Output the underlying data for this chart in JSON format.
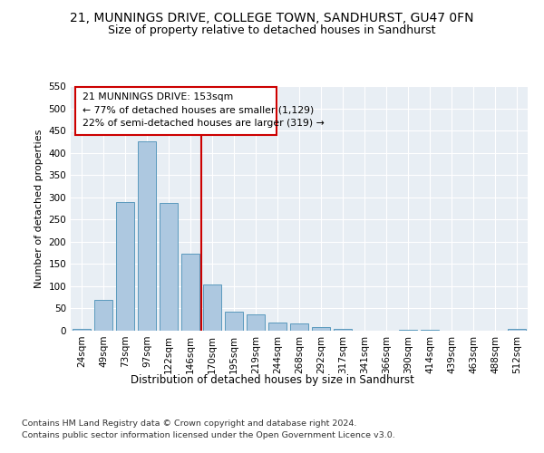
{
  "title1": "21, MUNNINGS DRIVE, COLLEGE TOWN, SANDHURST, GU47 0FN",
  "title2": "Size of property relative to detached houses in Sandhurst",
  "xlabel": "Distribution of detached houses by size in Sandhurst",
  "ylabel": "Number of detached properties",
  "categories": [
    "24sqm",
    "49sqm",
    "73sqm",
    "97sqm",
    "122sqm",
    "146sqm",
    "170sqm",
    "195sqm",
    "219sqm",
    "244sqm",
    "268sqm",
    "292sqm",
    "317sqm",
    "341sqm",
    "366sqm",
    "390sqm",
    "414sqm",
    "439sqm",
    "463sqm",
    "488sqm",
    "512sqm"
  ],
  "values": [
    5,
    70,
    290,
    425,
    287,
    173,
    103,
    43,
    37,
    18,
    16,
    8,
    4,
    0,
    0,
    3,
    2,
    0,
    0,
    0,
    4
  ],
  "bar_color": "#adc8e0",
  "bar_edge_color": "#5a9abd",
  "vline_x": 5.5,
  "vline_color": "#cc0000",
  "annotation_line1": "21 MUNNINGS DRIVE: 153sqm",
  "annotation_line2": "← 77% of detached houses are smaller (1,129)",
  "annotation_line3": "22% of semi-detached houses are larger (319) →",
  "annotation_box_color": "#cc0000",
  "ylim": [
    0,
    550
  ],
  "yticks": [
    0,
    50,
    100,
    150,
    200,
    250,
    300,
    350,
    400,
    450,
    500,
    550
  ],
  "footer1": "Contains HM Land Registry data © Crown copyright and database right 2024.",
  "footer2": "Contains public sector information licensed under the Open Government Licence v3.0.",
  "bg_color": "#e8eef4",
  "fig_bg_color": "#ffffff",
  "title1_fontsize": 10,
  "title2_fontsize": 9,
  "xlabel_fontsize": 8.5,
  "ylabel_fontsize": 8,
  "tick_fontsize": 7.5,
  "footer_fontsize": 6.8,
  "ann_fontsize": 7.8
}
